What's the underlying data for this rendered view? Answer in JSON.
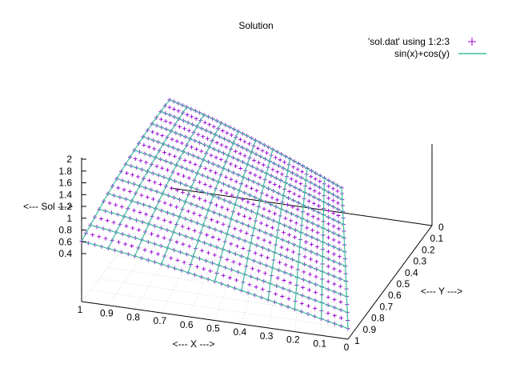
{
  "chart_data": {
    "type": "surface3d",
    "title": "Solution",
    "xlabel": "<--- X --->",
    "ylabel": "<--- Y --->",
    "zlabel": "<--- Sol --->",
    "x_ticks": [
      "1",
      "0.9",
      "0.8",
      "0.7",
      "0.6",
      "0.5",
      "0.4",
      "0.3",
      "0.2",
      "0.1",
      "0"
    ],
    "y_ticks": [
      "0",
      "0.1",
      "0.2",
      "0.3",
      "0.4",
      "0.5",
      "0.6",
      "0.7",
      "0.8",
      "0.9",
      "1"
    ],
    "z_ticks": [
      "2",
      "1.8",
      "1.6",
      "1.4",
      "1.2",
      "1",
      "0.8",
      "0.6",
      "0.4"
    ],
    "xlim": [
      0,
      1
    ],
    "ylim": [
      0,
      1
    ],
    "zlim": [
      0.4,
      2
    ],
    "grid": true,
    "legend_position": "top-right",
    "series": [
      {
        "name": "'sol.dat' using 1:2:3",
        "style": "points",
        "marker": "+",
        "color": "#9400d3"
      },
      {
        "name": "sin(x)+cos(y)",
        "style": "lines",
        "color": "#009e73"
      }
    ],
    "function": "sin(x)+cos(y)",
    "points_grid": {
      "x_count": 41,
      "y_count": 21
    },
    "lines_grid": {
      "x_count": 11,
      "y_count": 11
    }
  }
}
